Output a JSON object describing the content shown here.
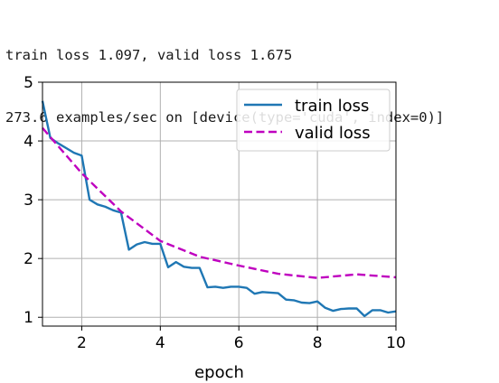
{
  "log": {
    "line1": "train loss 1.097, valid loss 1.675",
    "line2": "273.6 examples/sec on [device(type='cuda', index=0)]"
  },
  "colors": {
    "train": "#1f77b4",
    "valid": "#bf00bf",
    "grid": "#b0b0b0",
    "axis": "#000000"
  },
  "chart_data": {
    "type": "line",
    "title": "",
    "xlabel": "epoch",
    "ylabel": "",
    "xlim": [
      1,
      10
    ],
    "ylim": [
      0.85,
      5.0
    ],
    "xticks": [
      2,
      4,
      6,
      8,
      10
    ],
    "yticks": [
      1,
      2,
      3,
      4,
      5
    ],
    "grid": true,
    "legend": "top-right",
    "series": [
      {
        "name": "train loss",
        "style": "solid",
        "x": [
          1.0,
          1.2,
          1.4,
          1.6,
          1.8,
          2.0,
          2.2,
          2.4,
          2.6,
          2.8,
          3.0,
          3.2,
          3.4,
          3.6,
          3.8,
          4.0,
          4.2,
          4.4,
          4.6,
          4.8,
          5.0,
          5.2,
          5.4,
          5.6,
          5.8,
          6.0,
          6.2,
          6.4,
          6.6,
          6.8,
          7.0,
          7.2,
          7.4,
          7.6,
          7.8,
          8.0,
          8.2,
          8.4,
          8.6,
          8.8,
          9.0,
          9.2,
          9.4,
          9.6,
          9.8,
          10.0
        ],
        "y": [
          4.68,
          4.05,
          3.96,
          3.88,
          3.8,
          3.75,
          3.0,
          2.92,
          2.88,
          2.82,
          2.78,
          2.15,
          2.24,
          2.28,
          2.25,
          2.25,
          1.85,
          1.94,
          1.86,
          1.84,
          1.84,
          1.51,
          1.52,
          1.5,
          1.52,
          1.52,
          1.5,
          1.4,
          1.43,
          1.42,
          1.41,
          1.3,
          1.29,
          1.25,
          1.24,
          1.27,
          1.16,
          1.11,
          1.14,
          1.15,
          1.15,
          1.02,
          1.12,
          1.12,
          1.08,
          1.1
        ]
      },
      {
        "name": "valid loss",
        "style": "dashed",
        "x": [
          1,
          2,
          3,
          4,
          5,
          6,
          7,
          8,
          9,
          10
        ],
        "y": [
          4.22,
          3.45,
          2.8,
          2.3,
          2.03,
          1.88,
          1.74,
          1.67,
          1.73,
          1.68
        ]
      }
    ]
  }
}
